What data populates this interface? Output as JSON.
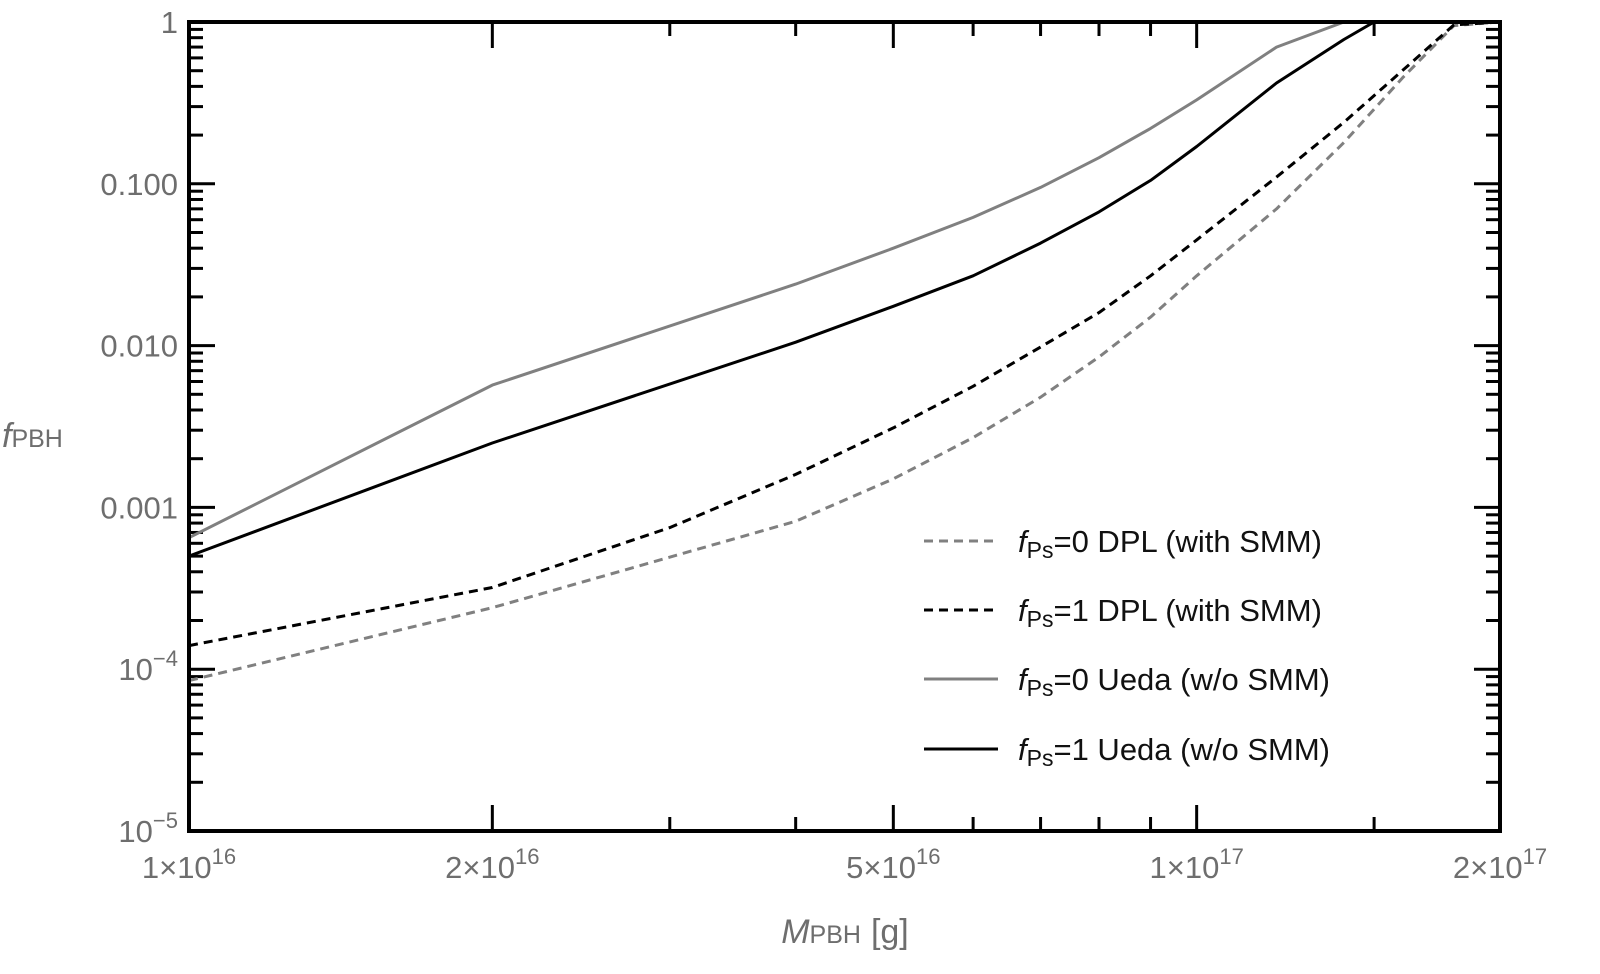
{
  "chart_data": {
    "type": "line",
    "title": "",
    "xlabel": {
      "main": "M",
      "sub": "PBH",
      "unit": "[g]"
    },
    "ylabel": {
      "main": "f",
      "sub": "PBH"
    },
    "xscale": "log",
    "yscale": "log",
    "xlim": [
      1e+16,
      2e+17
    ],
    "ylim": [
      1e-05,
      1
    ],
    "x_ticks": [
      {
        "value": 1e+16,
        "mant": "1",
        "exp": "16"
      },
      {
        "value": 2e+16,
        "mant": "2",
        "exp": "16"
      },
      {
        "value": 5e+16,
        "mant": "5",
        "exp": "16"
      },
      {
        "value": 1e+17,
        "mant": "1",
        "exp": "17"
      },
      {
        "value": 2e+17,
        "mant": "2",
        "exp": "17"
      }
    ],
    "x_minor_ticks": [
      3e+16,
      4e+16,
      6e+16,
      7e+16,
      8e+16,
      9e+16,
      1.5e+17
    ],
    "y_ticks": [
      {
        "value": 1,
        "text": "1"
      },
      {
        "value": 0.1,
        "text": "0.100"
      },
      {
        "value": 0.01,
        "text": "0.010"
      },
      {
        "value": 0.001,
        "text": "0.001"
      },
      {
        "value": 0.0001,
        "base": "10",
        "exp": "−4"
      },
      {
        "value": 1e-05,
        "base": "10",
        "exp": "−5"
      }
    ],
    "times_symbol": "×",
    "legend_position": "bottom-right",
    "grid": false,
    "series": [
      {
        "name": "f_Ps=0 DPL (with SMM)",
        "legend": {
          "main": "f",
          "sub": "Ps",
          "text": "=0 DPL (with SMM)"
        },
        "color": "#808080",
        "dash": "dashed",
        "x": [
          1e+16,
          2e+16,
          4e+16,
          5e+16,
          6e+16,
          7e+16,
          8e+16,
          9e+16,
          1e+17,
          1.2e+17,
          1.4e+17,
          1.6e+17,
          1.8e+17,
          2e+17
        ],
        "y": [
          8.5e-05,
          0.00024,
          0.00082,
          0.0015,
          0.0027,
          0.0048,
          0.0085,
          0.015,
          0.027,
          0.07,
          0.18,
          0.45,
          0.95,
          1.0
        ]
      },
      {
        "name": "f_Ps=1 DPL (with SMM)",
        "legend": {
          "main": "f",
          "sub": "Ps",
          "text": "=1 DPL (with SMM)"
        },
        "color": "#000000",
        "dash": "dashed",
        "x": [
          1e+16,
          2e+16,
          3e+16,
          4e+16,
          5e+16,
          6e+16,
          7e+16,
          8e+16,
          9e+16,
          1e+17,
          1.2e+17,
          1.4e+17,
          1.6e+17,
          1.8e+17,
          2e+17
        ],
        "y": [
          0.00014,
          0.00032,
          0.00075,
          0.0016,
          0.0031,
          0.0056,
          0.0098,
          0.016,
          0.027,
          0.045,
          0.11,
          0.24,
          0.5,
          0.96,
          1.0
        ]
      },
      {
        "name": "f_Ps=0 Ueda (w/o SMM)",
        "legend": {
          "main": "f",
          "sub": "Ps",
          "text": "=0 Ueda (w/o SMM)"
        },
        "color": "#808080",
        "dash": "solid",
        "x": [
          1e+16,
          2e+16,
          4e+16,
          5e+16,
          6e+16,
          7e+16,
          8e+16,
          9e+16,
          1e+17,
          1.2e+17,
          1.4e+17
        ],
        "y": [
          0.00065,
          0.0057,
          0.024,
          0.04,
          0.062,
          0.095,
          0.145,
          0.22,
          0.33,
          0.7,
          1.0
        ]
      },
      {
        "name": "f_Ps=1 Ueda (w/o SMM)",
        "legend": {
          "main": "f",
          "sub": "Ps",
          "text": "=1 Ueda (w/o SMM)"
        },
        "color": "#000000",
        "dash": "solid",
        "x": [
          1e+16,
          2e+16,
          4e+16,
          5e+16,
          6e+16,
          7e+16,
          8e+16,
          9e+16,
          1e+17,
          1.2e+17,
          1.4e+17,
          1.5e+17
        ],
        "y": [
          0.0005,
          0.0025,
          0.0105,
          0.0175,
          0.027,
          0.043,
          0.067,
          0.105,
          0.17,
          0.42,
          0.78,
          1.0
        ]
      }
    ]
  }
}
